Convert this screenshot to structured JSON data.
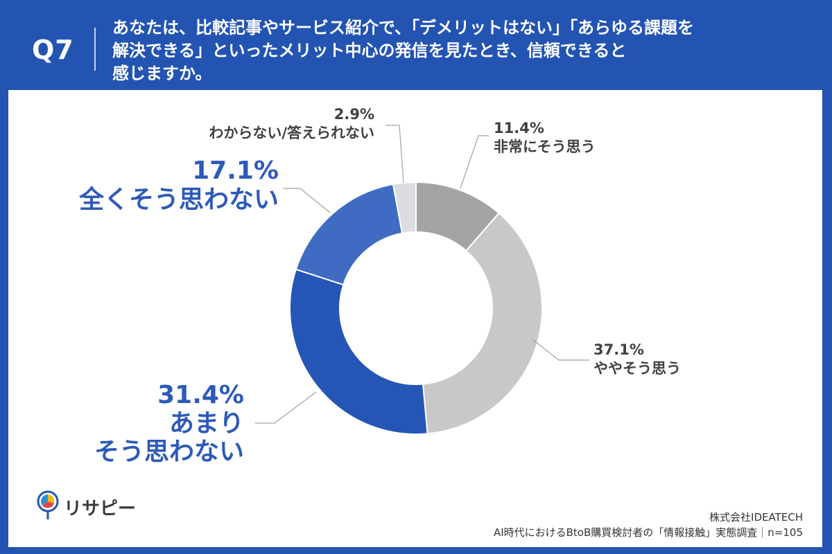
{
  "header": {
    "question_number": "Q7",
    "question_lines": [
      "あなたは、比較記事やサービス紹介で、「デメリットはない」「あらゆる課題を",
      "解決できる」といったメリット中心の発信を見たとき、信頼できると",
      "感じますか。"
    ]
  },
  "chart_data": {
    "type": "pie",
    "donut": true,
    "slices": [
      {
        "label": "非常にそう思う",
        "value": 11.4,
        "value_label": "11.4%",
        "color": "#a6a3a3"
      },
      {
        "label": "ややそう思う",
        "value": 37.1,
        "value_label": "37.1%",
        "color": "#c9c7c7"
      },
      {
        "label": "あまりそう思わない",
        "label_lines": [
          "あまり",
          "そう思わない"
        ],
        "value": 31.4,
        "value_label": "31.4%",
        "color": "#2656b5"
      },
      {
        "label": "全くそう思わない",
        "value": 17.1,
        "value_label": "17.1%",
        "color": "#3f6cc2"
      },
      {
        "label": "わからない/答えられない",
        "value": 2.9,
        "value_label": "2.9%",
        "color": "#dcdce3"
      }
    ]
  },
  "logo": {
    "text": "リサピー"
  },
  "footer": {
    "company": "株式会社IDEATECH",
    "survey": "AI時代におけるBtoB購買検討者の「情報接触」実態調査｜n=105"
  }
}
